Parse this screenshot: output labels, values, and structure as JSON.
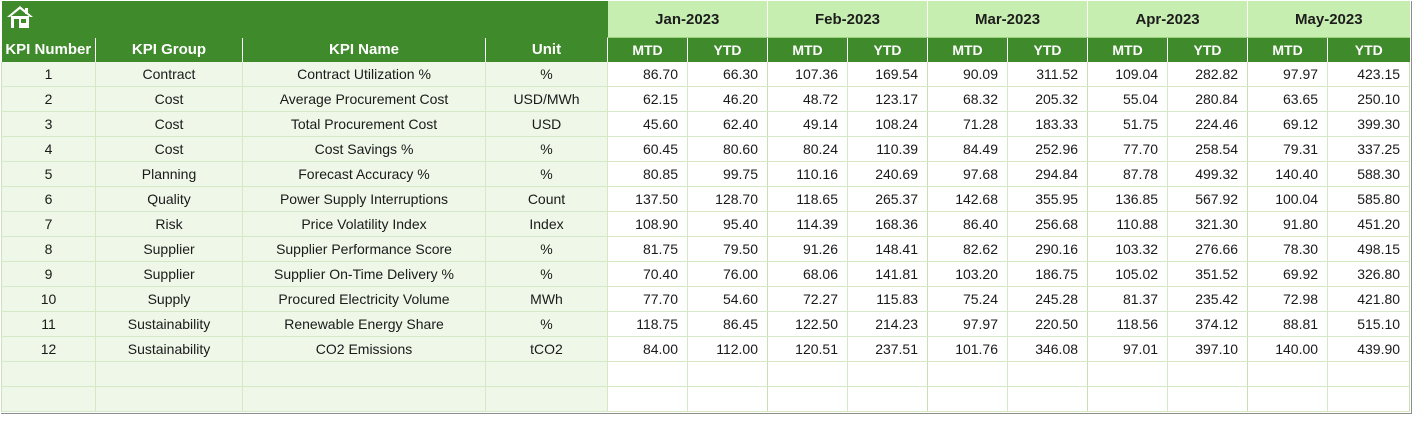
{
  "header": {
    "home_icon": "home-icon",
    "months": [
      "Jan-2023",
      "Feb-2023",
      "Mar-2023",
      "Apr-2023",
      "May-2023"
    ],
    "columns": [
      "KPI Number",
      "KPI Group",
      "KPI Name",
      "Unit"
    ],
    "mtd_label": "MTD",
    "ytd_label": "YTD"
  },
  "colors": {
    "header_green": "#3f8a2a",
    "month_band": "#c6eeb0",
    "left_row_fill": "#eef7e8",
    "grid_line": "#d6e9c6"
  },
  "rows": [
    {
      "num": "1",
      "group": "Contract",
      "name": "Contract Utilization %",
      "unit": "%",
      "vals": [
        "86.70",
        "66.30",
        "107.36",
        "169.54",
        "90.09",
        "311.52",
        "109.04",
        "282.82",
        "97.97",
        "423.15"
      ]
    },
    {
      "num": "2",
      "group": "Cost",
      "name": "Average Procurement Cost",
      "unit": "USD/MWh",
      "vals": [
        "62.15",
        "46.20",
        "48.72",
        "123.17",
        "68.32",
        "205.32",
        "55.04",
        "280.84",
        "63.65",
        "250.10"
      ]
    },
    {
      "num": "3",
      "group": "Cost",
      "name": "Total Procurement Cost",
      "unit": "USD",
      "vals": [
        "45.60",
        "62.40",
        "49.14",
        "108.24",
        "71.28",
        "183.33",
        "51.75",
        "224.46",
        "69.12",
        "399.30"
      ]
    },
    {
      "num": "4",
      "group": "Cost",
      "name": "Cost Savings %",
      "unit": "%",
      "vals": [
        "60.45",
        "80.60",
        "80.24",
        "110.39",
        "84.49",
        "252.96",
        "77.70",
        "258.54",
        "79.31",
        "337.25"
      ]
    },
    {
      "num": "5",
      "group": "Planning",
      "name": "Forecast Accuracy %",
      "unit": "%",
      "vals": [
        "80.85",
        "99.75",
        "110.16",
        "240.69",
        "97.68",
        "294.84",
        "87.78",
        "499.32",
        "140.40",
        "588.30"
      ]
    },
    {
      "num": "6",
      "group": "Quality",
      "name": "Power Supply Interruptions",
      "unit": "Count",
      "vals": [
        "137.50",
        "128.70",
        "118.65",
        "265.37",
        "142.68",
        "355.95",
        "136.85",
        "567.92",
        "100.04",
        "585.80"
      ]
    },
    {
      "num": "7",
      "group": "Risk",
      "name": "Price Volatility Index",
      "unit": "Index",
      "vals": [
        "108.90",
        "95.40",
        "114.39",
        "168.36",
        "86.40",
        "256.68",
        "110.88",
        "321.30",
        "91.80",
        "451.20"
      ]
    },
    {
      "num": "8",
      "group": "Supplier",
      "name": "Supplier Performance Score",
      "unit": "%",
      "vals": [
        "81.75",
        "79.50",
        "91.26",
        "148.41",
        "82.62",
        "290.16",
        "103.32",
        "276.66",
        "78.30",
        "498.15"
      ]
    },
    {
      "num": "9",
      "group": "Supplier",
      "name": "Supplier On-Time Delivery %",
      "unit": "%",
      "vals": [
        "70.40",
        "76.00",
        "68.06",
        "141.81",
        "103.20",
        "186.75",
        "105.02",
        "351.52",
        "69.92",
        "326.80"
      ]
    },
    {
      "num": "10",
      "group": "Supply",
      "name": "Procured Electricity Volume",
      "unit": "MWh",
      "vals": [
        "77.70",
        "54.60",
        "72.27",
        "115.83",
        "75.24",
        "245.28",
        "81.37",
        "235.42",
        "72.98",
        "421.80"
      ]
    },
    {
      "num": "11",
      "group": "Sustainability",
      "name": "Renewable Energy Share",
      "unit": "%",
      "vals": [
        "118.75",
        "86.45",
        "122.50",
        "214.23",
        "97.97",
        "220.50",
        "118.56",
        "374.12",
        "88.81",
        "515.10"
      ]
    },
    {
      "num": "12",
      "group": "Sustainability",
      "name": "CO2 Emissions",
      "unit": "tCO2",
      "vals": [
        "84.00",
        "112.00",
        "120.51",
        "237.51",
        "101.76",
        "346.08",
        "97.01",
        "397.10",
        "140.00",
        "439.90"
      ]
    },
    {
      "num": "",
      "group": "",
      "name": "",
      "unit": "",
      "vals": [
        "",
        "",
        "",
        "",
        "",
        "",
        "",
        "",
        "",
        ""
      ]
    },
    {
      "num": "",
      "group": "",
      "name": "",
      "unit": "",
      "vals": [
        "",
        "",
        "",
        "",
        "",
        "",
        "",
        "",
        "",
        ""
      ]
    }
  ]
}
